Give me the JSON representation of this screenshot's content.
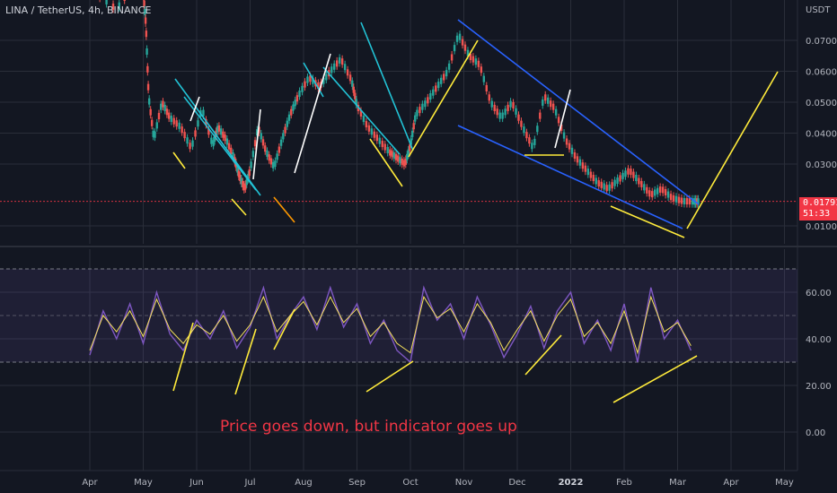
{
  "chart_data": [
    {
      "type": "line",
      "title": "LINA / TetherUS, 4h, BINANCE",
      "unit": "USDT",
      "ylim": [
        0.0055,
        0.0862
      ],
      "y_ticks": [
        "0.07000",
        "0.06000",
        "0.05000",
        "0.04000",
        "0.03000",
        "0.01000"
      ],
      "y_tick_values": [
        0.07,
        0.06,
        0.05,
        0.04,
        0.03,
        0.01
      ],
      "last_price": "0.01791",
      "countdown": "51:33",
      "x_ticks": [
        "Apr",
        "May",
        "Jun",
        "Jul",
        "Aug",
        "Sep",
        "Oct",
        "Nov",
        "Dec",
        "2022",
        "Feb",
        "Mar",
        "Apr",
        "May"
      ],
      "x_tick_months": [
        0,
        1,
        2,
        3,
        4,
        5,
        6,
        7,
        8,
        9,
        10,
        11,
        12,
        13
      ],
      "series": [
        {
          "values_x": [
            0,
            0.5,
            0.9,
            1.0,
            1.05,
            1.1,
            1.2,
            1.35,
            1.5,
            1.7,
            1.9,
            2.1,
            2.3,
            2.4,
            2.55,
            2.7,
            2.8,
            2.9,
            3.0,
            3.15,
            3.3,
            3.45,
            3.6,
            3.75,
            3.9,
            4.1,
            4.3,
            4.5,
            4.7,
            4.9,
            5.0,
            5.2,
            5.4,
            5.6,
            5.75,
            5.9,
            6.0,
            6.1,
            6.3,
            6.5,
            6.7,
            6.9,
            7.1,
            7.3,
            7.5,
            7.7,
            7.9,
            8.1,
            8.3,
            8.5,
            8.7,
            8.9,
            9.1,
            9.3,
            9.5,
            9.7,
            9.9,
            10.1,
            10.3,
            10.5,
            10.7,
            10.9,
            11.1,
            11.3,
            11.4
          ],
          "values_y": [
            0.087,
            0.08,
            0.09,
            0.086,
            0.075,
            0.052,
            0.038,
            0.05,
            0.045,
            0.042,
            0.035,
            0.048,
            0.036,
            0.042,
            0.038,
            0.032,
            0.026,
            0.022,
            0.028,
            0.042,
            0.034,
            0.029,
            0.038,
            0.046,
            0.052,
            0.058,
            0.055,
            0.06,
            0.064,
            0.057,
            0.049,
            0.042,
            0.038,
            0.034,
            0.032,
            0.03,
            0.036,
            0.046,
            0.05,
            0.055,
            0.06,
            0.072,
            0.065,
            0.062,
            0.05,
            0.045,
            0.05,
            0.042,
            0.035,
            0.052,
            0.048,
            0.038,
            0.032,
            0.028,
            0.024,
            0.022,
            0.025,
            0.028,
            0.024,
            0.02,
            0.022,
            0.019,
            0.018,
            0.0179,
            0.0179
          ]
        }
      ]
    },
    {
      "type": "line",
      "ylim": [
        -7,
        80
      ],
      "y_ticks": [
        "60.00",
        "40.00",
        "20.00",
        "0.00"
      ],
      "y_tick_values": [
        60,
        40,
        20,
        0
      ],
      "band": [
        30,
        70
      ],
      "series": [
        {
          "values_x": [
            0,
            0.25,
            0.5,
            0.75,
            1,
            1.25,
            1.5,
            1.75,
            2,
            2.25,
            2.5,
            2.75,
            3,
            3.25,
            3.5,
            3.75,
            4,
            4.25,
            4.5,
            4.75,
            5,
            5.25,
            5.5,
            5.75,
            6,
            6.25,
            6.5,
            6.75,
            7,
            7.25,
            7.5,
            7.75,
            8,
            8.25,
            8.5,
            8.75,
            9,
            9.25,
            9.5,
            9.75,
            10,
            10.25,
            10.5,
            10.75,
            11,
            11.25
          ],
          "values_y": [
            33,
            52,
            40,
            55,
            38,
            60,
            42,
            35,
            48,
            40,
            52,
            36,
            45,
            62,
            40,
            50,
            58,
            44,
            62,
            45,
            55,
            38,
            48,
            35,
            30,
            62,
            48,
            55,
            40,
            58,
            46,
            32,
            42,
            54,
            36,
            52,
            60,
            38,
            48,
            35,
            55,
            30,
            62,
            40,
            48,
            35
          ]
        },
        {
          "values_x": [
            0,
            0.25,
            0.5,
            0.75,
            1,
            1.25,
            1.5,
            1.75,
            2,
            2.25,
            2.5,
            2.75,
            3,
            3.25,
            3.5,
            3.75,
            4,
            4.25,
            4.5,
            4.75,
            5,
            5.25,
            5.5,
            5.75,
            6,
            6.25,
            6.5,
            6.75,
            7,
            7.25,
            7.5,
            7.75,
            8,
            8.25,
            8.5,
            8.75,
            9,
            9.25,
            9.5,
            9.75,
            10,
            10.25,
            10.5,
            10.75,
            11,
            11.25
          ],
          "values_y": [
            35,
            50,
            43,
            52,
            41,
            57,
            44,
            38,
            46,
            42,
            50,
            39,
            46,
            58,
            43,
            50,
            56,
            46,
            58,
            47,
            53,
            41,
            47,
            38,
            34,
            58,
            49,
            53,
            43,
            55,
            47,
            35,
            44,
            52,
            39,
            50,
            57,
            41,
            47,
            38,
            52,
            34,
            58,
            43,
            47,
            37
          ]
        }
      ]
    }
  ],
  "caption": "Price goes down, but indicator goes up"
}
